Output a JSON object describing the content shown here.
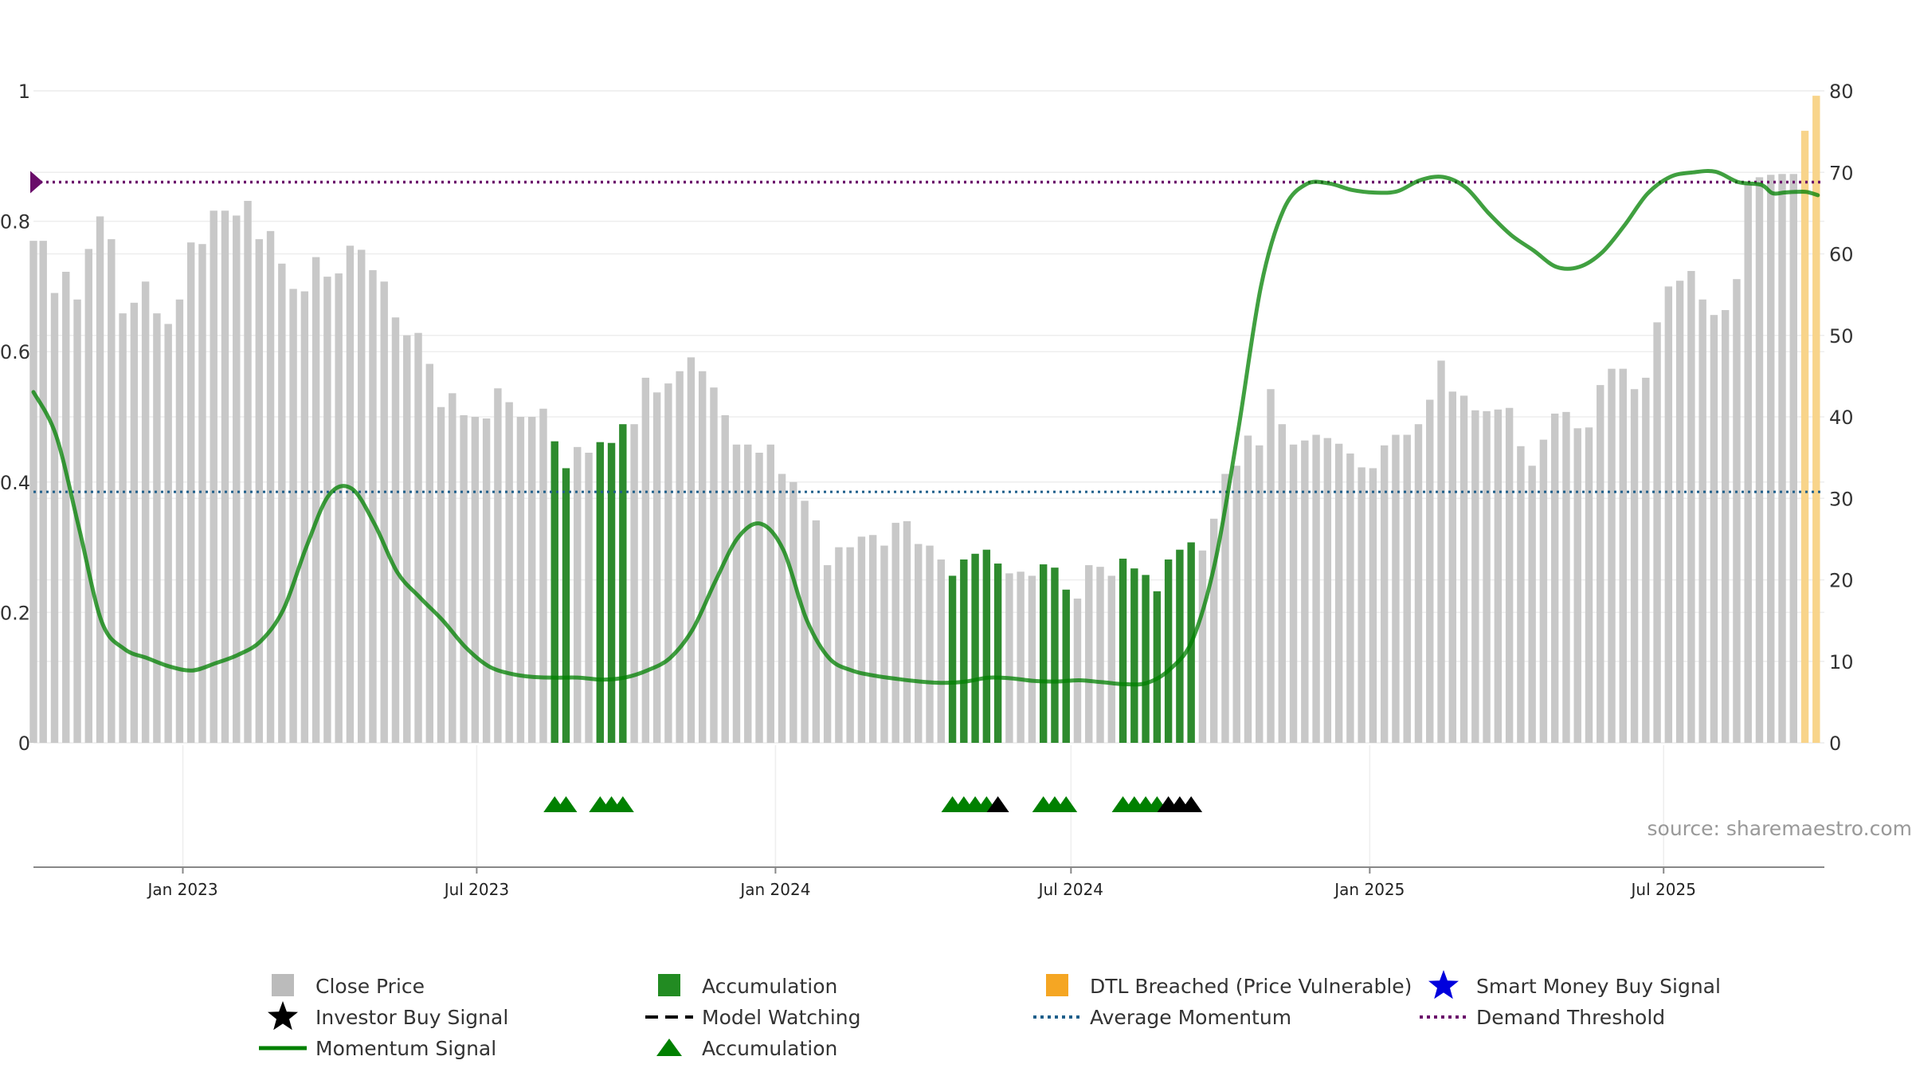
{
  "chart_data": {
    "type": "bar",
    "source_text": "source: sharemaestro.com",
    "left_axis": {
      "range": [
        0,
        1
      ],
      "ticks": [
        0,
        0.2,
        0.4,
        0.6,
        0.8,
        1
      ],
      "tick_labels": [
        "0",
        "0.2",
        "0.4",
        "0.6",
        "0.8",
        "1"
      ]
    },
    "right_axis": {
      "range": [
        0,
        80
      ],
      "ticks": [
        0,
        10,
        20,
        30,
        40,
        50,
        60,
        70,
        80
      ],
      "tick_labels": [
        "0",
        "10",
        "20",
        "30",
        "40",
        "50",
        "60",
        "70",
        "80"
      ]
    },
    "x_axis": {
      "start": "2022-10-01",
      "end": "2025-10-08",
      "ticks": [
        "2023-01-01",
        "2023-07-01",
        "2024-01-01",
        "2024-07-01",
        "2025-01-01",
        "2025-07-01"
      ],
      "tick_labels": [
        "Jan 2023",
        "Jul 2023",
        "Jan 2024",
        "Jul 2024",
        "Jan 2025",
        "Jul 2025"
      ]
    },
    "close_price": {
      "name": "Close Price",
      "bar_width_days": 3.3,
      "dates": [
        "2022-10-01",
        "2022-10-07",
        "2022-10-14",
        "2022-10-21",
        "2022-10-28",
        "2022-11-04",
        "2022-11-11",
        "2022-11-18",
        "2022-11-25",
        "2022-12-02",
        "2022-12-09",
        "2022-12-16",
        "2022-12-23",
        "2022-12-30",
        "2023-01-06",
        "2023-01-13",
        "2023-01-20",
        "2023-01-27",
        "2023-02-03",
        "2023-02-10",
        "2023-02-17",
        "2023-02-24",
        "2023-03-03",
        "2023-03-10",
        "2023-03-17",
        "2023-03-24",
        "2023-03-31",
        "2023-04-07",
        "2023-04-14",
        "2023-04-21",
        "2023-04-28",
        "2023-05-05",
        "2023-05-12",
        "2023-05-19",
        "2023-05-26",
        "2023-06-02",
        "2023-06-09",
        "2023-06-16",
        "2023-06-23",
        "2023-06-30",
        "2023-07-07",
        "2023-07-14",
        "2023-07-21",
        "2023-07-28",
        "2023-08-04",
        "2023-08-11",
        "2023-08-18",
        "2023-08-25",
        "2023-09-01",
        "2023-09-08",
        "2023-09-15",
        "2023-09-22",
        "2023-09-29",
        "2023-10-06",
        "2023-10-13",
        "2023-10-20",
        "2023-10-27",
        "2023-11-03",
        "2023-11-10",
        "2023-11-17",
        "2023-11-24",
        "2023-12-01",
        "2023-12-08",
        "2023-12-15",
        "2023-12-22",
        "2023-12-29",
        "2024-01-05",
        "2024-01-12",
        "2024-01-19",
        "2024-01-26",
        "2024-02-02",
        "2024-02-09",
        "2024-02-16",
        "2024-02-23",
        "2024-03-01",
        "2024-03-08",
        "2024-03-15",
        "2024-03-22",
        "2024-03-29",
        "2024-04-05",
        "2024-04-12",
        "2024-04-19",
        "2024-04-26",
        "2024-05-03",
        "2024-05-10",
        "2024-05-17",
        "2024-05-24",
        "2024-05-31",
        "2024-06-07",
        "2024-06-14",
        "2024-06-21",
        "2024-06-28",
        "2024-07-05",
        "2024-07-12",
        "2024-07-19",
        "2024-07-26",
        "2024-08-02",
        "2024-08-09",
        "2024-08-16",
        "2024-08-23",
        "2024-08-30",
        "2024-09-06",
        "2024-09-13",
        "2024-09-20",
        "2024-09-27",
        "2024-10-04",
        "2024-10-11",
        "2024-10-18",
        "2024-10-25",
        "2024-11-01",
        "2024-11-08",
        "2024-11-15",
        "2024-11-22",
        "2024-11-29",
        "2024-12-06",
        "2024-12-13",
        "2024-12-20",
        "2024-12-27",
        "2025-01-03",
        "2025-01-10",
        "2025-01-17",
        "2025-01-24",
        "2025-01-31",
        "2025-02-07",
        "2025-02-14",
        "2025-02-21",
        "2025-02-28",
        "2025-03-07",
        "2025-03-14",
        "2025-03-21",
        "2025-03-28",
        "2025-04-04",
        "2025-04-11",
        "2025-04-18",
        "2025-04-25",
        "2025-05-02",
        "2025-05-09",
        "2025-05-16",
        "2025-05-23",
        "2025-05-30",
        "2025-06-06",
        "2025-06-13",
        "2025-06-20",
        "2025-06-27",
        "2025-07-04",
        "2025-07-11",
        "2025-07-18",
        "2025-07-25",
        "2025-08-01",
        "2025-08-08",
        "2025-08-15",
        "2025-08-22",
        "2025-08-29",
        "2025-09-05",
        "2025-09-12",
        "2025-09-19",
        "2025-09-26",
        "2025-10-03"
      ],
      "values": [
        61.6,
        61.6,
        55.2,
        57.8,
        54.4,
        60.6,
        64.6,
        61.8,
        52.7,
        54.0,
        56.6,
        52.7,
        51.4,
        54.4,
        61.4,
        61.2,
        65.3,
        65.3,
        64.7,
        66.5,
        61.8,
        62.8,
        58.8,
        55.7,
        55.4,
        59.6,
        57.2,
        57.6,
        61.0,
        60.5,
        58.0,
        56.6,
        52.2,
        50.0,
        50.3,
        46.5,
        41.2,
        42.9,
        40.2,
        40.0,
        39.8,
        43.5,
        41.8,
        40.0,
        40.0,
        41.0,
        37.0,
        33.7,
        36.3,
        35.6,
        36.9,
        36.8,
        39.1,
        39.1,
        44.8,
        43.0,
        44.1,
        45.6,
        47.3,
        45.6,
        43.6,
        40.2,
        36.6,
        36.6,
        35.6,
        36.6,
        33.0,
        32.0,
        29.7,
        27.3,
        21.8,
        24.0,
        24.0,
        25.3,
        25.5,
        24.2,
        27.0,
        27.2,
        24.4,
        24.2,
        22.5,
        20.5,
        22.5,
        23.2,
        23.7,
        22.0,
        20.8,
        21.0,
        20.5,
        21.9,
        21.5,
        18.8,
        17.7,
        21.8,
        21.6,
        20.5,
        22.6,
        21.4,
        20.6,
        18.6,
        22.5,
        23.7,
        24.6,
        23.6,
        27.5,
        33.0,
        34.0,
        37.7,
        36.5,
        43.4,
        39.1,
        36.6,
        37.1,
        37.8,
        37.4,
        36.7,
        35.5,
        33.8,
        33.7,
        36.5,
        37.8,
        37.8,
        39.1,
        42.1,
        46.9,
        43.1,
        42.6,
        40.8,
        40.7,
        40.9,
        41.1,
        36.4,
        34.0,
        37.2,
        40.4,
        40.6,
        38.6,
        38.7,
        43.9,
        45.9,
        45.9,
        43.4,
        44.8,
        51.6,
        56.0,
        56.7,
        57.9,
        54.4,
        52.5,
        53.1,
        56.9,
        68.6,
        69.4,
        69.7,
        69.8,
        69.8,
        75.1,
        79.4
      ],
      "accumulation_dates": [
        "2023-08-18",
        "2023-08-25",
        "2023-09-15",
        "2023-09-22",
        "2023-09-29",
        "2024-04-19",
        "2024-04-26",
        "2024-05-03",
        "2024-05-10",
        "2024-05-17",
        "2024-06-14",
        "2024-06-21",
        "2024-06-28",
        "2024-08-02",
        "2024-08-09",
        "2024-08-16",
        "2024-08-23",
        "2024-08-30",
        "2024-09-06",
        "2024-09-13"
      ],
      "dtl_breached_dates": [
        "2025-09-26",
        "2025-10-03"
      ]
    },
    "momentum_signal": {
      "name": "Momentum Signal",
      "dates": [
        "2022-10-01",
        "2022-10-15",
        "2022-10-29",
        "2022-11-12",
        "2022-11-26",
        "2022-12-10",
        "2022-12-24",
        "2023-01-07",
        "2023-01-21",
        "2023-02-04",
        "2023-02-18",
        "2023-03-04",
        "2023-03-18",
        "2023-04-01",
        "2023-04-15",
        "2023-04-29",
        "2023-05-13",
        "2023-05-27",
        "2023-06-10",
        "2023-06-24",
        "2023-07-08",
        "2023-07-22",
        "2023-08-05",
        "2023-08-19",
        "2023-09-02",
        "2023-09-16",
        "2023-09-30",
        "2023-10-14",
        "2023-10-28",
        "2023-11-11",
        "2023-11-25",
        "2023-12-09",
        "2023-12-23",
        "2024-01-06",
        "2024-01-20",
        "2024-02-03",
        "2024-02-17",
        "2024-03-02",
        "2024-03-16",
        "2024-03-30",
        "2024-04-13",
        "2024-04-27",
        "2024-05-11",
        "2024-05-25",
        "2024-06-08",
        "2024-06-22",
        "2024-07-06",
        "2024-07-20",
        "2024-08-03",
        "2024-08-17",
        "2024-08-31",
        "2024-09-14",
        "2024-09-28",
        "2024-10-12",
        "2024-10-26",
        "2024-11-09",
        "2024-11-23",
        "2024-12-07",
        "2024-12-21",
        "2025-01-04",
        "2025-01-18",
        "2025-02-01",
        "2025-02-15",
        "2025-03-01",
        "2025-03-15",
        "2025-03-29",
        "2025-04-12",
        "2025-04-26",
        "2025-05-10",
        "2025-05-24",
        "2025-06-07",
        "2025-06-21",
        "2025-07-05",
        "2025-07-19",
        "2025-08-02",
        "2025-08-16",
        "2025-08-30",
        "2025-09-06",
        "2025-09-13",
        "2025-09-20",
        "2025-09-27",
        "2025-10-04"
      ],
      "values": [
        0.538,
        0.471,
        0.33,
        0.186,
        0.144,
        0.13,
        0.117,
        0.111,
        0.122,
        0.135,
        0.156,
        0.205,
        0.3,
        0.38,
        0.39,
        0.336,
        0.262,
        0.223,
        0.188,
        0.147,
        0.118,
        0.106,
        0.101,
        0.1,
        0.1,
        0.097,
        0.1,
        0.111,
        0.13,
        0.174,
        0.248,
        0.315,
        0.336,
        0.295,
        0.19,
        0.13,
        0.111,
        0.103,
        0.098,
        0.094,
        0.092,
        0.094,
        0.1,
        0.099,
        0.095,
        0.094,
        0.096,
        0.093,
        0.09,
        0.092,
        0.113,
        0.159,
        0.28,
        0.48,
        0.7,
        0.818,
        0.857,
        0.858,
        0.848,
        0.844,
        0.846,
        0.863,
        0.868,
        0.852,
        0.813,
        0.779,
        0.755,
        0.73,
        0.73,
        0.752,
        0.794,
        0.842,
        0.868,
        0.875,
        0.876,
        0.86,
        0.856,
        0.843,
        0.844,
        0.845,
        0.845,
        0.84
      ]
    },
    "average_momentum": {
      "name": "Average Momentum",
      "value": 0.385
    },
    "demand_threshold": {
      "name": "Demand Threshold",
      "value": 0.86
    },
    "signals": {
      "accumulation_dates": [
        "2023-08-18",
        "2023-08-25",
        "2023-09-15",
        "2023-09-22",
        "2023-09-29",
        "2024-04-19",
        "2024-04-26",
        "2024-05-03",
        "2024-05-10",
        "2024-06-14",
        "2024-06-21",
        "2024-06-28",
        "2024-08-02",
        "2024-08-09",
        "2024-08-16",
        "2024-08-23"
      ],
      "model_watching_dates": [
        "2024-05-17",
        "2024-08-30",
        "2024-09-06",
        "2024-09-13"
      ]
    },
    "legend": [
      {
        "label": "Close Price",
        "symbol": "square",
        "color": "#bbbbbb"
      },
      {
        "label": "Accumulation",
        "symbol": "square",
        "color": "#228b22"
      },
      {
        "label": "DTL Breached (Price Vulnerable)",
        "symbol": "square",
        "color": "#f5a623"
      },
      {
        "label": "Smart Money Buy Signal",
        "symbol": "star",
        "color": "#0000dd"
      },
      {
        "label": "Investor Buy Signal",
        "symbol": "star",
        "color": "#000000"
      },
      {
        "label": "Model Watching",
        "symbol": "dash",
        "color": "#000000"
      },
      {
        "label": "Average Momentum",
        "symbol": "dotted",
        "color": "#1f5f8b"
      },
      {
        "label": "Demand Threshold",
        "symbol": "dotted",
        "color": "#6a0d6a"
      },
      {
        "label": "Momentum Signal",
        "symbol": "line",
        "color": "#008000"
      },
      {
        "label": "Accumulation",
        "symbol": "triangle",
        "color": "#008000"
      }
    ],
    "colors": {
      "close_price": "#c8c8c8",
      "accumulation_bar": "#2e8b2e",
      "dtl_bar": "#f8d48a",
      "momentum": "#008000",
      "average": "#1f5f8b",
      "threshold": "#6a0d6a",
      "grid": "#eeeeee",
      "axis": "#888888",
      "triangle_green": "#008000",
      "triangle_black": "#000000"
    }
  }
}
